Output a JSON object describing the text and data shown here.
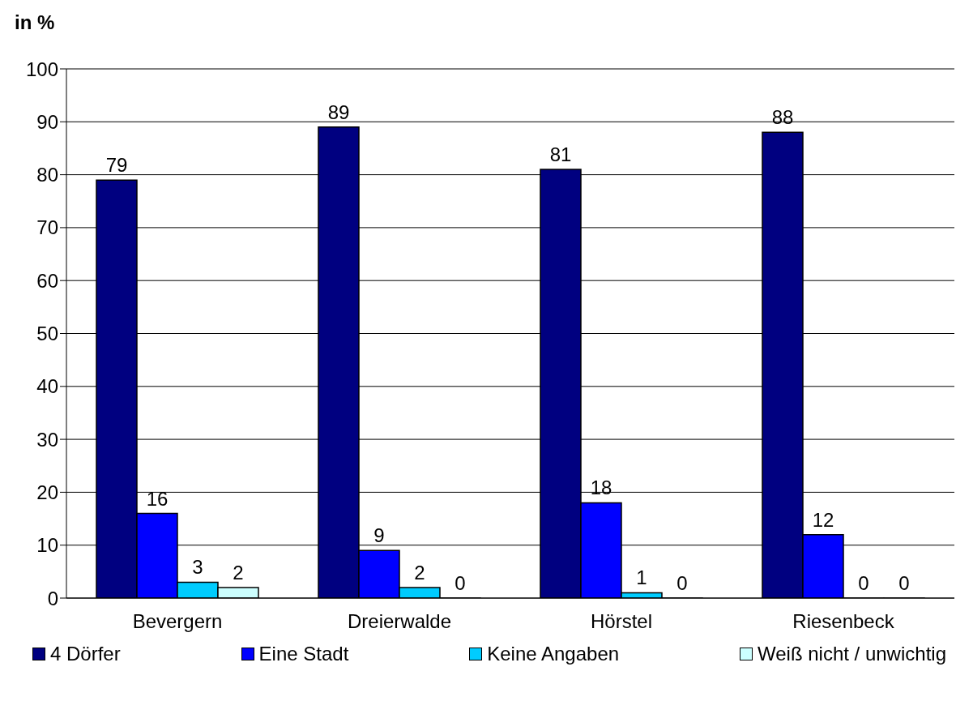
{
  "chart_data": {
    "type": "bar",
    "title": "in %",
    "categories": [
      "Bevergern",
      "Dreierwalde",
      "Hörstel",
      "Riesenbeck"
    ],
    "series": [
      {
        "name": "4 Dörfer",
        "color": "#000080",
        "values": [
          79,
          89,
          81,
          88
        ]
      },
      {
        "name": "Eine Stadt",
        "color": "#0000ff",
        "values": [
          16,
          9,
          18,
          12
        ]
      },
      {
        "name": "Keine Angaben",
        "color": "#00ccff",
        "values": [
          3,
          2,
          1,
          0
        ]
      },
      {
        "name": "Weiß nicht / unwichtig",
        "color": "#ccffff",
        "values": [
          2,
          0,
          0,
          0
        ]
      }
    ],
    "ylim": [
      0,
      100
    ],
    "yticks": [
      0,
      10,
      20,
      30,
      40,
      50,
      60,
      70,
      80,
      90,
      100
    ],
    "grid": "y",
    "legend": "bottom",
    "data_labels": true
  }
}
